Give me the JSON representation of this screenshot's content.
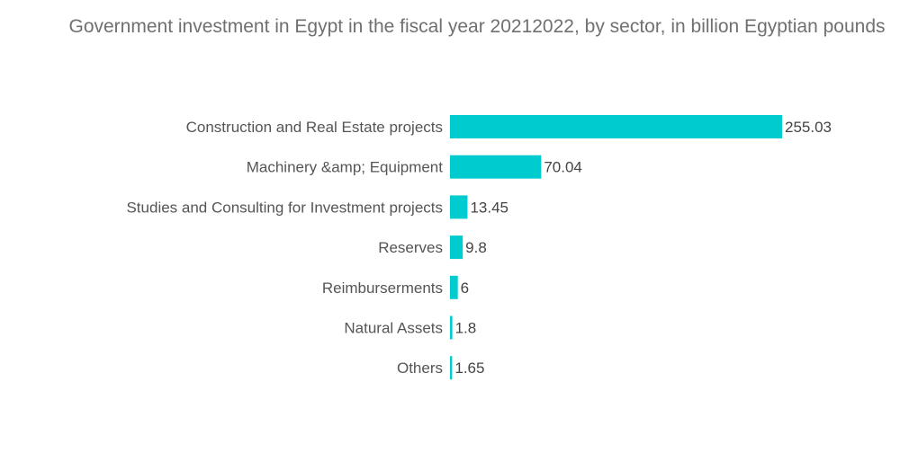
{
  "chart_data": {
    "type": "bar",
    "orientation": "horizontal",
    "title": "Government investment in Egypt in the fiscal year 20212022, by sector, in billion Egyptian pounds",
    "categories": [
      "Construction and Real Estate projects",
      "Machinery &amp; Equipment",
      "Studies and Consulting for Investment projects",
      "Reserves",
      "Reimburserments",
      "Natural Assets",
      "Others"
    ],
    "values": [
      255.03,
      70.04,
      13.45,
      9.8,
      6,
      1.8,
      1.65
    ],
    "value_labels": [
      "255.03",
      "70.04",
      "13.45",
      "9.8",
      "6",
      "1.8",
      "1.65"
    ],
    "xlabel": "",
    "ylabel": "",
    "xlim": [
      0,
      255.03
    ],
    "grid": false,
    "legend": "none",
    "bar_color": "#00CCD0"
  }
}
